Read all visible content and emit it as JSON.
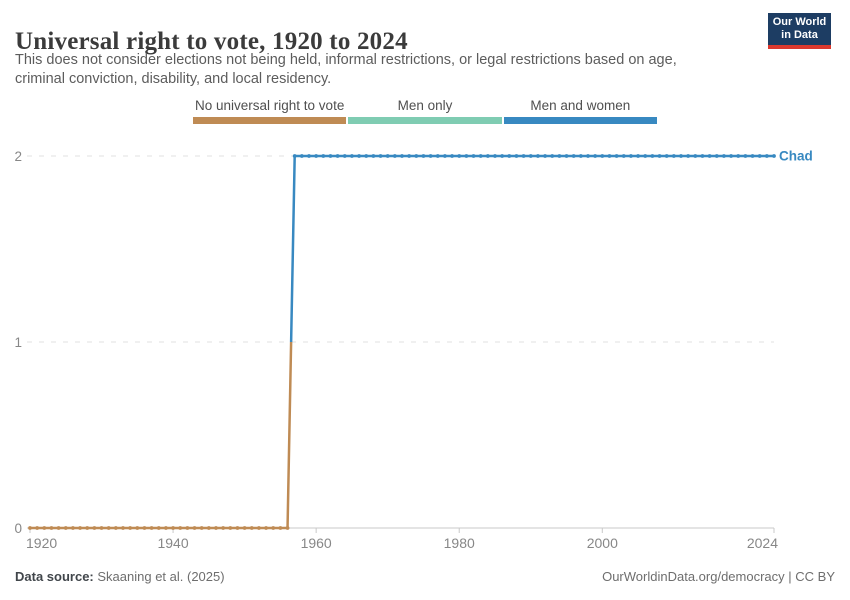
{
  "header": {
    "title": "Universal right to vote, 1920 to 2024",
    "subtitle_lines": [
      "This does not consider elections not being held, informal restrictions, or legal restrictions based on age,",
      "criminal conviction, disability, and local residency."
    ],
    "logo": {
      "line1": "Our World",
      "line2": "in Data",
      "bg_color": "#1d3d63",
      "accent_color": "#dc392e"
    }
  },
  "legend": {
    "items": [
      {
        "label": "No universal right to vote",
        "color": "#bf8b54",
        "value": 0
      },
      {
        "label": "Men only",
        "color": "#7fccb2",
        "value": 1
      },
      {
        "label": "Men and women",
        "color": "#3889c1",
        "value": 2
      }
    ]
  },
  "chart_data": {
    "type": "line",
    "title": "Universal right to vote, 1920 to 2024",
    "entity": "Chad",
    "x": {
      "min": 1920,
      "max": 2024,
      "label_years": [
        1920,
        1940,
        1960,
        1980,
        2000,
        2024
      ]
    },
    "y": {
      "min": 0,
      "max": 2,
      "ticks": [
        0,
        1,
        2
      ]
    },
    "series": [
      {
        "name": "Chad",
        "steps": [
          {
            "from": 1920,
            "to": 1956,
            "value": 0
          },
          {
            "from": 1957,
            "to": 2024,
            "value": 2
          }
        ]
      }
    ],
    "value_colors": {
      "0": "#bf8b54",
      "1": "#7fccb2",
      "2": "#3889c1"
    },
    "grid": "dashed horizontal gridlines at y=1 and y=2, solid axis at y=0",
    "legend_position": "top-center",
    "marker": "point-per-year"
  },
  "axis_colors": {
    "grid": "#e0e0e0",
    "axis": "#c9c9c9",
    "text": "#878787"
  },
  "footer": {
    "source_label": "Data source:",
    "source_value": "Skaaning et al. (2025)",
    "link": "OurWorldinData.org/democracy",
    "divider": " | ",
    "license": "CC BY"
  }
}
